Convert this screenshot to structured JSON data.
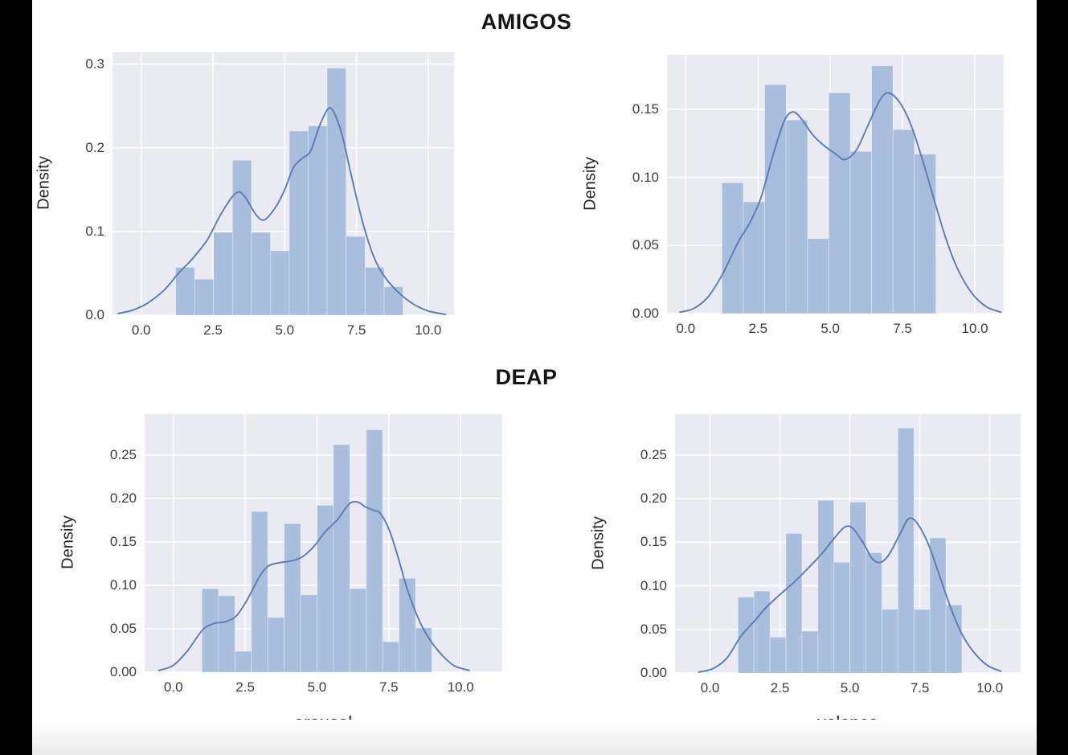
{
  "window": {
    "bg": "#000000",
    "canvas_bg": "#ffffff"
  },
  "labels": {
    "group_titles": [
      "AMIGOS",
      "DEAP"
    ],
    "x_axis_labels": [
      "arousal",
      "valence"
    ],
    "y_axis_label": "Density"
  },
  "colors": {
    "bar_fill": "#a9bedd",
    "bar_edge": "rgba(255,255,255,0.45)",
    "kde_line": "#5b7cb3",
    "plot_bg": "#e9eaf2",
    "grid": "#ffffff",
    "tick_text": "#3d3d3d",
    "label_text": "#1c1c1c"
  },
  "chart_data": [
    {
      "id": "amigos-arousal",
      "type": "histogram+kde",
      "dataset": "AMIGOS",
      "variable": "arousal",
      "ylabel": "Density",
      "xlim": [
        -1.0,
        10.9
      ],
      "ylim": [
        0,
        0.314
      ],
      "x_ticks": [
        0,
        2.5,
        5,
        7.5,
        10
      ],
      "x_tick_labels": [
        "0.0",
        "2.5",
        "5.0",
        "7.5",
        "10.0"
      ],
      "y_ticks": [
        0,
        0.1,
        0.2,
        0.3
      ],
      "y_tick_labels": [
        "0.0",
        "0.1",
        "0.2",
        "0.3"
      ],
      "bins": {
        "start": 1.2,
        "width": 0.66
      },
      "bar_heights": [
        0.057,
        0.043,
        0.099,
        0.185,
        0.099,
        0.077,
        0.22,
        0.226,
        0.295,
        0.094,
        0.057,
        0.034
      ],
      "kde_points": [
        [
          -0.8,
          0.002
        ],
        [
          -0.3,
          0.006
        ],
        [
          0.2,
          0.014
        ],
        [
          0.8,
          0.03
        ],
        [
          1.3,
          0.05
        ],
        [
          1.8,
          0.068
        ],
        [
          2.3,
          0.09
        ],
        [
          2.8,
          0.122
        ],
        [
          3.3,
          0.146
        ],
        [
          3.6,
          0.142
        ],
        [
          4.0,
          0.12
        ],
        [
          4.3,
          0.114
        ],
        [
          4.7,
          0.13
        ],
        [
          5.0,
          0.15
        ],
        [
          5.3,
          0.176
        ],
        [
          5.6,
          0.187
        ],
        [
          5.9,
          0.196
        ],
        [
          6.2,
          0.225
        ],
        [
          6.5,
          0.246
        ],
        [
          6.7,
          0.243
        ],
        [
          7.0,
          0.215
        ],
        [
          7.3,
          0.17
        ],
        [
          7.7,
          0.113
        ],
        [
          8.1,
          0.07
        ],
        [
          8.5,
          0.045
        ],
        [
          9.0,
          0.026
        ],
        [
          9.5,
          0.013
        ],
        [
          10.0,
          0.005
        ],
        [
          10.6,
          0.001
        ]
      ]
    },
    {
      "id": "amigos-valence",
      "type": "histogram+kde",
      "dataset": "AMIGOS",
      "variable": "valence",
      "ylabel": "Density",
      "xlim": [
        -0.65,
        11.0
      ],
      "ylim": [
        0,
        0.19
      ],
      "x_ticks": [
        0,
        2.5,
        5,
        7.5,
        10
      ],
      "x_tick_labels": [
        "0.0",
        "2.5",
        "5.0",
        "7.5",
        "10.0"
      ],
      "y_ticks": [
        0,
        0.05,
        0.1,
        0.15
      ],
      "y_tick_labels": [
        "0.00",
        "0.05",
        "0.10",
        "0.15"
      ],
      "bins": {
        "start": 1.25,
        "width": 0.74
      },
      "bar_heights": [
        0.096,
        0.082,
        0.168,
        0.142,
        0.055,
        0.162,
        0.119,
        0.182,
        0.135,
        0.117
      ],
      "kde_points": [
        [
          -0.2,
          0.001
        ],
        [
          0.3,
          0.004
        ],
        [
          0.8,
          0.013
        ],
        [
          1.3,
          0.03
        ],
        [
          1.8,
          0.052
        ],
        [
          2.2,
          0.066
        ],
        [
          2.6,
          0.085
        ],
        [
          3.0,
          0.115
        ],
        [
          3.4,
          0.141
        ],
        [
          3.7,
          0.148
        ],
        [
          4.0,
          0.143
        ],
        [
          4.4,
          0.131
        ],
        [
          4.8,
          0.123
        ],
        [
          5.2,
          0.117
        ],
        [
          5.5,
          0.113
        ],
        [
          5.9,
          0.12
        ],
        [
          6.3,
          0.138
        ],
        [
          6.7,
          0.156
        ],
        [
          7.0,
          0.162
        ],
        [
          7.4,
          0.155
        ],
        [
          7.8,
          0.138
        ],
        [
          8.2,
          0.112
        ],
        [
          8.6,
          0.083
        ],
        [
          9.0,
          0.055
        ],
        [
          9.4,
          0.033
        ],
        [
          9.9,
          0.015
        ],
        [
          10.4,
          0.005
        ],
        [
          10.9,
          0.001
        ]
      ]
    },
    {
      "id": "deap-arousal",
      "type": "histogram+kde",
      "dataset": "DEAP",
      "variable": "arousal",
      "ylabel": "Density",
      "xlim": [
        -1.0,
        11.45
      ],
      "ylim": [
        0,
        0.297
      ],
      "x_ticks": [
        0,
        2.5,
        5,
        7.5,
        10
      ],
      "x_tick_labels": [
        "0.0",
        "2.5",
        "5.0",
        "7.5",
        "10.0"
      ],
      "y_ticks": [
        0,
        0.05,
        0.1,
        0.15,
        0.2,
        0.25
      ],
      "y_tick_labels": [
        "0.00",
        "0.05",
        "0.10",
        "0.15",
        "0.20",
        "0.25"
      ],
      "bins": {
        "start": 1.0,
        "width": 0.5715
      },
      "bar_heights": [
        0.096,
        0.088,
        0.024,
        0.185,
        0.063,
        0.171,
        0.089,
        0.192,
        0.262,
        0.096,
        0.279,
        0.035,
        0.108,
        0.051
      ],
      "kde_points": [
        [
          -0.5,
          0.002
        ],
        [
          0.0,
          0.008
        ],
        [
          0.5,
          0.025
        ],
        [
          1.0,
          0.048
        ],
        [
          1.4,
          0.056
        ],
        [
          1.8,
          0.058
        ],
        [
          2.2,
          0.065
        ],
        [
          2.6,
          0.085
        ],
        [
          3.0,
          0.11
        ],
        [
          3.3,
          0.122
        ],
        [
          3.7,
          0.126
        ],
        [
          4.1,
          0.128
        ],
        [
          4.5,
          0.133
        ],
        [
          4.9,
          0.145
        ],
        [
          5.3,
          0.162
        ],
        [
          5.7,
          0.175
        ],
        [
          6.1,
          0.193
        ],
        [
          6.4,
          0.196
        ],
        [
          6.7,
          0.19
        ],
        [
          7.0,
          0.186
        ],
        [
          7.2,
          0.183
        ],
        [
          7.5,
          0.165
        ],
        [
          7.8,
          0.135
        ],
        [
          8.1,
          0.1
        ],
        [
          8.4,
          0.072
        ],
        [
          8.7,
          0.05
        ],
        [
          9.0,
          0.034
        ],
        [
          9.4,
          0.018
        ],
        [
          9.8,
          0.007
        ],
        [
          10.3,
          0.002
        ]
      ]
    },
    {
      "id": "deap-valence",
      "type": "histogram+kde",
      "dataset": "DEAP",
      "variable": "valence",
      "ylabel": "Density",
      "xlim": [
        -1.25,
        11.1
      ],
      "ylim": [
        0,
        0.297
      ],
      "x_ticks": [
        0,
        2.5,
        5,
        7.5,
        10
      ],
      "x_tick_labels": [
        "0.0",
        "2.5",
        "5.0",
        "7.5",
        "10.0"
      ],
      "y_ticks": [
        0,
        0.05,
        0.1,
        0.15,
        0.2,
        0.25
      ],
      "y_tick_labels": [
        "0.00",
        "0.05",
        "0.10",
        "0.15",
        "0.20",
        "0.25"
      ],
      "bins": {
        "start": 1.0,
        "width": 0.5715
      },
      "bar_heights": [
        0.087,
        0.094,
        0.041,
        0.16,
        0.048,
        0.198,
        0.127,
        0.196,
        0.138,
        0.073,
        0.281,
        0.073,
        0.155,
        0.078
      ],
      "kde_points": [
        [
          -0.4,
          0.001
        ],
        [
          0.1,
          0.005
        ],
        [
          0.6,
          0.017
        ],
        [
          1.1,
          0.042
        ],
        [
          1.6,
          0.06
        ],
        [
          2.0,
          0.075
        ],
        [
          2.5,
          0.09
        ],
        [
          3.0,
          0.104
        ],
        [
          3.5,
          0.12
        ],
        [
          4.0,
          0.137
        ],
        [
          4.4,
          0.153
        ],
        [
          4.8,
          0.167
        ],
        [
          5.1,
          0.166
        ],
        [
          5.5,
          0.148
        ],
        [
          5.8,
          0.131
        ],
        [
          6.1,
          0.127
        ],
        [
          6.4,
          0.136
        ],
        [
          6.8,
          0.16
        ],
        [
          7.1,
          0.177
        ],
        [
          7.4,
          0.172
        ],
        [
          7.8,
          0.148
        ],
        [
          8.2,
          0.112
        ],
        [
          8.6,
          0.075
        ],
        [
          9.0,
          0.045
        ],
        [
          9.4,
          0.025
        ],
        [
          9.9,
          0.009
        ],
        [
          10.4,
          0.002
        ]
      ]
    }
  ]
}
